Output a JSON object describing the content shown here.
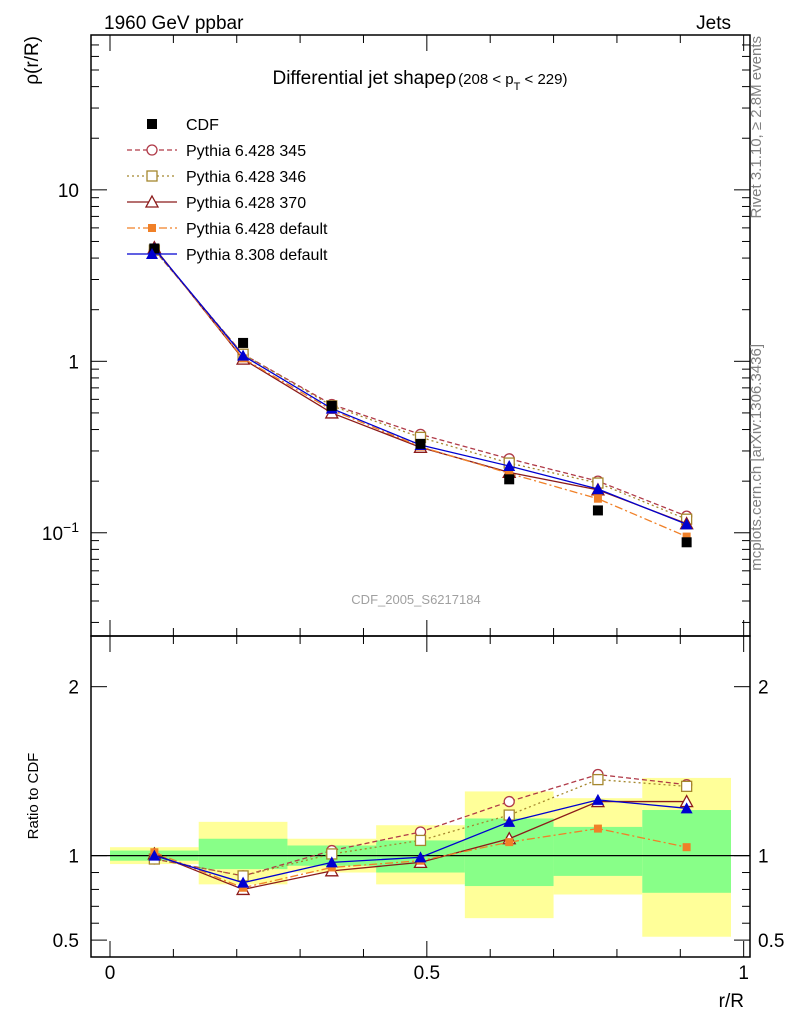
{
  "header": {
    "left": "1960 GeV ppbar",
    "right": "Jets"
  },
  "side_text": {
    "rivet": "Rivet 3.1.10, ≥ 2.8M events",
    "mcplots": "mcplots.cern.ch [arXiv:1306.3436]"
  },
  "chart_data": {
    "type": "line",
    "title": "Differential jet shapeρ",
    "title_sub": {
      "prefix": "(208 < p",
      "sub": "T",
      "suffix": " < 229)"
    },
    "watermark": "CDF_2005_S6217184",
    "xlabel": "r/R",
    "ylabel_main": "ρ(r/R)",
    "ylabel_ratio": "Ratio to CDF",
    "xlim": [
      -0.03,
      1.01
    ],
    "ylim_main": [
      0.025,
      80
    ],
    "ylim_ratio": [
      0.4,
      2.3
    ],
    "log_y_main": true,
    "x_ticks": [
      "0",
      "0.5",
      "1"
    ],
    "y_ticks_main": [
      "10",
      "1",
      "10−1"
    ],
    "y_ticks_ratio": [
      "2",
      "1",
      "0.5"
    ],
    "x": [
      0.07,
      0.21,
      0.35,
      0.49,
      0.63,
      0.77,
      0.91
    ],
    "bins": [
      [
        0.0,
        0.14
      ],
      [
        0.14,
        0.28
      ],
      [
        0.28,
        0.42
      ],
      [
        0.42,
        0.56
      ],
      [
        0.56,
        0.7
      ],
      [
        0.7,
        0.84
      ],
      [
        0.84,
        0.98
      ]
    ],
    "data": {
      "name": "CDF",
      "values": [
        4.55,
        1.28,
        0.55,
        0.33,
        0.205,
        0.135,
        0.088
      ]
    },
    "band_green": [
      [
        0.97,
        1.03
      ],
      [
        0.92,
        1.1
      ],
      [
        0.94,
        1.06
      ],
      [
        0.9,
        1.09
      ],
      [
        0.82,
        1.22
      ],
      [
        0.88,
        1.17
      ],
      [
        0.78,
        1.27
      ]
    ],
    "band_yellow": [
      [
        0.95,
        1.05
      ],
      [
        0.83,
        1.2
      ],
      [
        0.9,
        1.1
      ],
      [
        0.83,
        1.18
      ],
      [
        0.63,
        1.38
      ],
      [
        0.77,
        1.34
      ],
      [
        0.52,
        1.46
      ]
    ],
    "series": [
      {
        "name": "Pythia 6.428 345",
        "color": "#b03a48",
        "dash": "5,3",
        "marker": "circle-open",
        "values": [
          4.45,
          1.1,
          0.56,
          0.375,
          0.27,
          0.2,
          0.125
        ],
        "ratio": [
          0.98,
          0.88,
          1.03,
          1.14,
          1.32,
          1.48,
          1.42
        ]
      },
      {
        "name": "Pythia 6.428 346",
        "color": "#a5872e",
        "dash": "2,3",
        "marker": "square-open",
        "values": [
          4.45,
          1.1,
          0.55,
          0.36,
          0.255,
          0.195,
          0.12
        ],
        "ratio": [
          0.98,
          0.88,
          1.01,
          1.09,
          1.24,
          1.45,
          1.41
        ]
      },
      {
        "name": "Pythia 6.428 370",
        "color": "#8b1a1a",
        "dash": "",
        "marker": "triangle-open",
        "values": [
          4.6,
          1.03,
          0.5,
          0.315,
          0.225,
          0.178,
          0.113
        ],
        "ratio": [
          1.01,
          0.8,
          0.91,
          0.96,
          1.1,
          1.32,
          1.32
        ]
      },
      {
        "name": "Pythia 6.428 default",
        "color": "#f08028",
        "dash": "8,3,2,3",
        "marker": "square-filled",
        "values": [
          4.6,
          1.04,
          0.52,
          0.318,
          0.222,
          0.158,
          0.095
        ],
        "ratio": [
          1.02,
          0.81,
          0.93,
          0.97,
          1.08,
          1.16,
          1.05
        ]
      },
      {
        "name": "Pythia 8.308 default",
        "color": "#0000d0",
        "dash": "",
        "marker": "triangle-filled",
        "values": [
          4.55,
          1.08,
          0.53,
          0.325,
          0.245,
          0.18,
          0.112
        ],
        "ratio": [
          1.0,
          0.84,
          0.96,
          0.99,
          1.2,
          1.33,
          1.28
        ]
      }
    ]
  }
}
